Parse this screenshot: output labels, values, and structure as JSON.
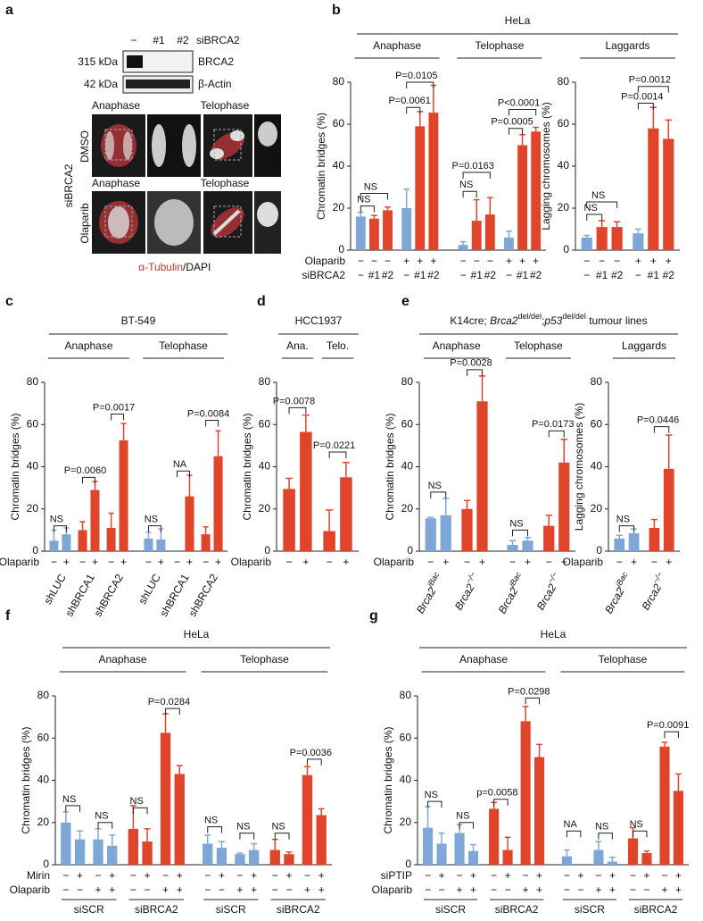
{
  "panel_a": {
    "letter": "a",
    "lanes": [
      "−",
      "#1",
      "#2"
    ],
    "lane_title": "siBRCA2",
    "blots": [
      {
        "size": "315 kDa",
        "protein": "BRCA2"
      },
      {
        "size": "42 kDa",
        "protein": "β-Actin"
      }
    ],
    "columns": [
      "Anaphase",
      "Telophase",
      "Anaphase",
      "Telophase"
    ],
    "side_label": "siBRCA2",
    "rows": [
      "DMSO",
      "Olaparib"
    ],
    "stain": [
      "α-Tubulin",
      "/DAPI"
    ]
  },
  "chart_data": [
    {
      "type": "bar",
      "panel": "b",
      "title": "HeLa",
      "ylabel": "Chromatin bridges (%)",
      "ylim": [
        0,
        80
      ],
      "yticks": [
        0,
        20,
        40,
        60,
        80
      ],
      "groups": [
        "Anaphase",
        "Telophase"
      ],
      "values": [
        16,
        15,
        19,
        20,
        59,
        65.5,
        2.5,
        14,
        17,
        6,
        50,
        56.5
      ],
      "errors": [
        2,
        1.5,
        1.5,
        9,
        7,
        13,
        1.5,
        10,
        8,
        3,
        5,
        2
      ],
      "colors": [
        "#7ea7d8",
        "#e0452b",
        "#e0452b",
        "#7ea7d8",
        "#e0452b",
        "#e0452b",
        "#7ea7d8",
        "#e0452b",
        "#e0452b",
        "#7ea7d8",
        "#e0452b",
        "#e0452b"
      ],
      "annotations": [
        "NS",
        "NS",
        "P=0.0061",
        "P=0.0105",
        "NS",
        "P=0.0163",
        "P=0.0005",
        "P<0.0001"
      ],
      "rows": [
        {
          "label": "Olaparib",
          "signs": [
            "−",
            "−",
            "−",
            "+",
            "+",
            "+",
            "−",
            "−",
            "−",
            "+",
            "+",
            "+"
          ]
        },
        {
          "label": "siBRCA2",
          "signs": [
            "−",
            "#1",
            "#2",
            "−",
            "#1",
            "#2",
            "−",
            "#1",
            "#2",
            "−",
            "#1",
            "#2"
          ]
        }
      ]
    },
    {
      "type": "bar",
      "ylabel": "Lagging chromosomes (%)",
      "ylim": [
        0,
        80
      ],
      "yticks": [
        0,
        20,
        40,
        60,
        80
      ],
      "groups": [
        "Laggards"
      ],
      "values": [
        6,
        11,
        11,
        8,
        58,
        53
      ],
      "errors": [
        1,
        3,
        2.5,
        2,
        10,
        9
      ],
      "colors": [
        "#7ea7d8",
        "#e0452b",
        "#e0452b",
        "#7ea7d8",
        "#e0452b",
        "#e0452b"
      ],
      "annotations": [
        "NS",
        "NS",
        "P=0.0014",
        "P=0.0012"
      ],
      "rows": [
        {
          "signs": [
            "−",
            "−",
            "−",
            "+",
            "+",
            "+"
          ]
        },
        {
          "signs": [
            "−",
            "#1",
            "#2",
            "−",
            "#1",
            "#2"
          ]
        }
      ]
    },
    {
      "type": "bar",
      "panel": "c",
      "title": "BT-549",
      "ylabel": "Chromatin bridges (%)",
      "ylim": [
        0,
        80
      ],
      "yticks": [
        0,
        20,
        40,
        60,
        80
      ],
      "groups": [
        "Anaphase",
        "Telophase"
      ],
      "values": [
        5,
        8,
        10,
        29,
        11,
        52.5,
        6,
        5.5,
        null,
        26,
        8,
        45
      ],
      "errors": [
        5,
        3,
        4,
        4,
        7,
        8,
        3,
        5,
        null,
        10,
        3.5,
        12
      ],
      "colors": [
        "#7ea7d8",
        "#7ea7d8",
        "#e0452b",
        "#e0452b",
        "#e0452b",
        "#e0452b",
        "#7ea7d8",
        "#7ea7d8",
        "#e0452b",
        "#e0452b",
        "#e0452b",
        "#e0452b"
      ],
      "annotations": [
        "NS",
        "P=0.0060",
        "P=0.0017",
        "NS",
        "NA",
        "P=0.0084"
      ],
      "rows": [
        {
          "label": "Olaparib",
          "signs": [
            "−",
            "+",
            "−",
            "+",
            "−",
            "+",
            "−",
            "+",
            "−",
            "+",
            "−",
            "+"
          ]
        }
      ],
      "subgroups": [
        "shLUC",
        "shBRCA1",
        "shBRCA2",
        "shLUC",
        "shBRCA1",
        "shBRCA2"
      ]
    },
    {
      "type": "bar",
      "panel": "d",
      "title": "HCC1937",
      "ylabel": "Chromatin bridges (%)",
      "ylim": [
        0,
        80
      ],
      "yticks": [
        0,
        20,
        40,
        60,
        80
      ],
      "groups": [
        "Ana.",
        "Telo."
      ],
      "values": [
        29.5,
        56.5,
        9.5,
        35
      ],
      "errors": [
        5,
        8,
        10,
        7
      ],
      "colors": [
        "#e0452b",
        "#e0452b",
        "#e0452b",
        "#e0452b"
      ],
      "annotations": [
        "P=0.0078",
        "P=0.0221"
      ],
      "rows": [
        {
          "label": "Olaparib",
          "signs": [
            "−",
            "+",
            "−",
            "+"
          ]
        }
      ]
    },
    {
      "type": "bar",
      "panel": "e",
      "title": [
        {
          "text": "K14cre; "
        },
        {
          "text": "Brca2",
          "italic": true
        },
        {
          "text": "del/del",
          "sup": true
        },
        {
          "text": ";"
        },
        {
          "text": "p53",
          "italic": true
        },
        {
          "text": "del/del",
          "sup": true
        },
        {
          "text": " tumour lines"
        }
      ],
      "ylabel": "Chromatin bridges (%)",
      "ylim": [
        0,
        80
      ],
      "yticks": [
        0,
        20,
        40,
        60,
        80
      ],
      "groups": [
        "Anaphase",
        "Telophase"
      ],
      "values": [
        15.5,
        17,
        20,
        71,
        3,
        5,
        12,
        42
      ],
      "errors": [
        0.5,
        8,
        4,
        12,
        2,
        1.5,
        5,
        11
      ],
      "colors": [
        "#7ea7d8",
        "#7ea7d8",
        "#e0452b",
        "#e0452b",
        "#7ea7d8",
        "#7ea7d8",
        "#e0452b",
        "#e0452b"
      ],
      "annotations": [
        "NS",
        "P=0.0028",
        "NS",
        "P=0.0173"
      ],
      "rows": [
        {
          "label": "Olaparib",
          "signs": [
            "−",
            "+",
            "−",
            "+",
            "−",
            "+",
            "−",
            "+"
          ]
        }
      ],
      "subgroups": [
        {
          "text": "Brca2",
          "sup": "iBac"
        },
        {
          "text": "Brca2",
          "sup": "−/−"
        },
        {
          "text": "Brca2",
          "sup": "iBac"
        },
        {
          "text": "Brca2",
          "sup": "−/−"
        }
      ]
    },
    {
      "type": "bar",
      "ylabel": "Lagging chromosomes (%)",
      "ylim": [
        0,
        80
      ],
      "yticks": [
        0,
        20,
        40,
        60,
        80
      ],
      "groups": [
        "Laggards"
      ],
      "values": [
        6,
        8.5,
        11,
        39
      ],
      "errors": [
        1.5,
        2,
        4,
        16
      ],
      "colors": [
        "#7ea7d8",
        "#7ea7d8",
        "#e0452b",
        "#e0452b"
      ],
      "annotations": [
        "NS",
        "P=0.0446"
      ],
      "rows": [
        {
          "label": "Olaparib",
          "signs": [
            "−",
            "+",
            "−",
            "+"
          ]
        }
      ],
      "subgroups": [
        {
          "text": "Brca2",
          "sup": "iBac"
        },
        {
          "text": "Brca2",
          "sup": "−/−"
        }
      ]
    },
    {
      "type": "bar",
      "panel": "f",
      "title": "HeLa",
      "ylabel": "Chromatin bridges (%)",
      "ylim": [
        0,
        80
      ],
      "yticks": [
        0,
        20,
        40,
        60,
        80
      ],
      "groups": [
        "Anaphase",
        "Telophase"
      ],
      "values": [
        20,
        12,
        12,
        9,
        17,
        11,
        62.5,
        43,
        10,
        8,
        5,
        7,
        7,
        5,
        42.5,
        23.5
      ],
      "errors": [
        5,
        4,
        5,
        5,
        11,
        6,
        9,
        4,
        4,
        3,
        0.5,
        3,
        5,
        1,
        4,
        3
      ],
      "colors": [
        "#7ea7d8",
        "#7ea7d8",
        "#7ea7d8",
        "#7ea7d8",
        "#e0452b",
        "#e0452b",
        "#e0452b",
        "#e0452b",
        "#7ea7d8",
        "#7ea7d8",
        "#7ea7d8",
        "#7ea7d8",
        "#e0452b",
        "#e0452b",
        "#e0452b",
        "#e0452b"
      ],
      "annotations": [
        "NS",
        "NS",
        "NS",
        "P=0.0284",
        "NS",
        "NS",
        "NS",
        "P=0.0036"
      ],
      "rows": [
        {
          "label": "Mirin",
          "signs": [
            "−",
            "+",
            "−",
            "+",
            "−",
            "+",
            "−",
            "+",
            "−",
            "+",
            "−",
            "+",
            "−",
            "+",
            "−",
            "+"
          ]
        },
        {
          "label": "Olaparib",
          "signs": [
            "−",
            "−",
            "+",
            "+",
            "−",
            "−",
            "+",
            "+",
            "−",
            "−",
            "+",
            "+",
            "−",
            "−",
            "+",
            "+"
          ]
        }
      ],
      "subgroups": [
        "siSCR",
        "siBRCA2",
        "siSCR",
        "siBRCA2"
      ]
    },
    {
      "type": "bar",
      "panel": "g",
      "title": "HeLa",
      "ylabel": "Chromatin bridges (%)",
      "ylim": [
        0,
        80
      ],
      "yticks": [
        0,
        20,
        40,
        60,
        80
      ],
      "groups": [
        "Anaphase",
        "Telophase"
      ],
      "values": [
        17.5,
        10,
        15,
        6.5,
        26.5,
        7,
        68,
        51,
        4,
        null,
        7,
        1.5,
        12.5,
        5.5,
        56,
        35
      ],
      "errors": [
        10,
        5,
        4,
        3,
        3,
        6,
        7,
        6,
        3,
        null,
        4,
        2,
        5,
        1,
        2,
        8
      ],
      "colors": [
        "#7ea7d8",
        "#7ea7d8",
        "#7ea7d8",
        "#7ea7d8",
        "#e0452b",
        "#e0452b",
        "#e0452b",
        "#e0452b",
        "#7ea7d8",
        "#7ea7d8",
        "#7ea7d8",
        "#7ea7d8",
        "#e0452b",
        "#e0452b",
        "#e0452b",
        "#e0452b"
      ],
      "annotations": [
        "NS",
        "NS",
        "p=0.0058",
        "P=0.0298",
        "NA",
        "NS",
        "NS",
        "P=0.0091"
      ],
      "rows": [
        {
          "label": "siPTIP",
          "signs": [
            "−",
            "+",
            "−",
            "+",
            "−",
            "+",
            "−",
            "+",
            "−",
            "+",
            "−",
            "+",
            "−",
            "+",
            "−",
            "+"
          ]
        },
        {
          "label": "Olaparib",
          "signs": [
            "−",
            "−",
            "+",
            "+",
            "−",
            "−",
            "+",
            "+",
            "−",
            "−",
            "+",
            "+",
            "−",
            "−",
            "+",
            "+"
          ]
        }
      ],
      "subgroups": [
        "siSCR",
        "siBRCA2",
        "siSCR",
        "siBRCA2"
      ]
    }
  ]
}
